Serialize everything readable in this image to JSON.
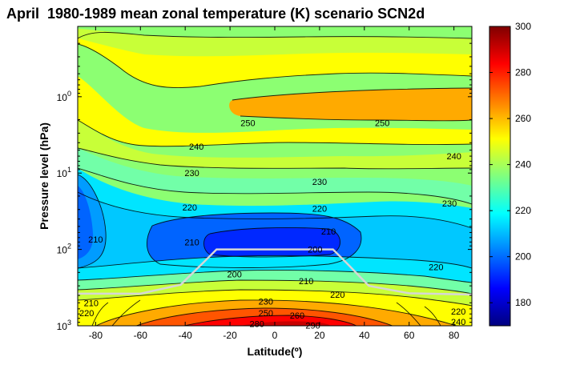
{
  "chart_data": {
    "type": "heatmap",
    "title": "April  1980-1989 mean zonal temperature (K) scenario SCN2d",
    "xlabel": "Latitude(º)",
    "ylabel": "Pressure level (hPa)",
    "x_ticks": [
      "-80",
      "-60",
      "-40",
      "-20",
      "0",
      "20",
      "40",
      "60",
      "80"
    ],
    "x_tick_values": [
      -80,
      -60,
      -40,
      -20,
      0,
      20,
      40,
      60,
      80
    ],
    "xlim": [
      -88,
      88
    ],
    "y_scale": "log",
    "y_reversed": true,
    "ylim_hpa": [
      0.12,
      1000
    ],
    "y_ticks": [
      {
        "base": "10",
        "exp": "0",
        "value": 1
      },
      {
        "base": "10",
        "exp": "1",
        "value": 10
      },
      {
        "base": "10",
        "exp": "2",
        "value": 100
      },
      {
        "base": "10",
        "exp": "3",
        "value": 1000
      }
    ],
    "colorbar": {
      "min": 170,
      "max": 300,
      "ticks": [
        "300",
        "280",
        "260",
        "240",
        "220",
        "200",
        "180"
      ],
      "tick_values": [
        300,
        280,
        260,
        240,
        220,
        200,
        180
      ],
      "colormap": "jet"
    },
    "contour_labels": [
      {
        "text": "250",
        "lat": -12,
        "p": 2.2
      },
      {
        "text": "250",
        "lat": 48,
        "p": 2.2
      },
      {
        "text": "240",
        "lat": -35,
        "p": 4.5
      },
      {
        "text": "240",
        "lat": 80,
        "p": 6
      },
      {
        "text": "230",
        "lat": -37,
        "p": 10
      },
      {
        "text": "230",
        "lat": 20,
        "p": 13
      },
      {
        "text": "230",
        "lat": 78,
        "p": 25
      },
      {
        "text": "220",
        "lat": -38,
        "p": 28
      },
      {
        "text": "220",
        "lat": 20,
        "p": 29
      },
      {
        "text": "220",
        "lat": 72,
        "p": 170
      },
      {
        "text": "210",
        "lat": -80,
        "p": 74
      },
      {
        "text": "210",
        "lat": -37,
        "p": 80
      },
      {
        "text": "210",
        "lat": 24,
        "p": 58
      },
      {
        "text": "210",
        "lat": 14,
        "p": 260
      },
      {
        "text": "210",
        "lat": -82,
        "p": 500
      },
      {
        "text": "200",
        "lat": 18,
        "p": 100
      },
      {
        "text": "200",
        "lat": -18,
        "p": 210
      },
      {
        "text": "230",
        "lat": -4,
        "p": 480
      },
      {
        "text": "250",
        "lat": -4,
        "p": 680
      },
      {
        "text": "260",
        "lat": 10,
        "p": 730
      },
      {
        "text": "220",
        "lat": 28,
        "p": 390
      },
      {
        "text": "220",
        "lat": 82,
        "p": 650
      },
      {
        "text": "240",
        "lat": 82,
        "p": 890
      },
      {
        "text": "280",
        "lat": -8,
        "p": 940
      },
      {
        "text": "290",
        "lat": 17,
        "p": 990
      },
      {
        "text": "220",
        "lat": -84,
        "p": 680
      }
    ],
    "tropopause_line": {
      "color": "#d6d6d6",
      "lat": [
        -88,
        -60,
        -42,
        -32,
        -26,
        26,
        32,
        42,
        60,
        88
      ],
      "p": [
        380,
        380,
        290,
        150,
        100,
        100,
        150,
        300,
        375,
        390
      ]
    }
  }
}
